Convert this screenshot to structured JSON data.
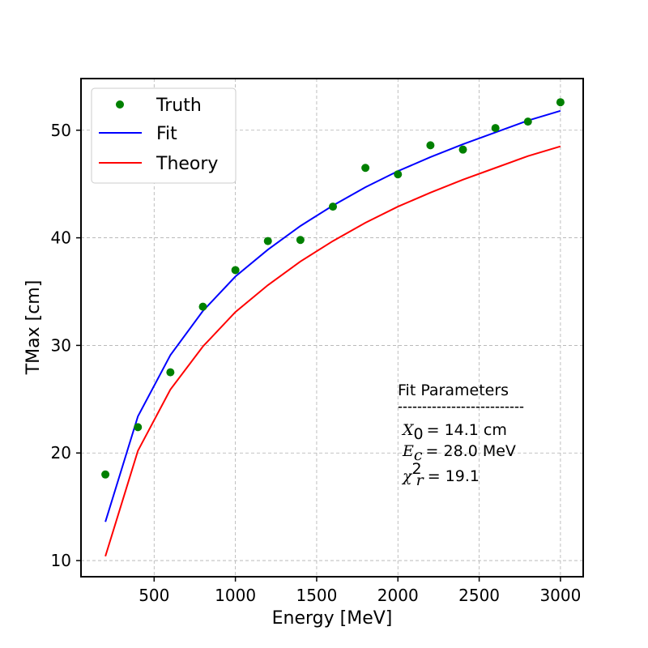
{
  "chart_data": {
    "type": "scatter",
    "xlabel": "Energy [MeV]",
    "ylabel": "TMax [cm]",
    "xlim": [
      50,
      3140
    ],
    "ylim": [
      8.5,
      54.8
    ],
    "x_ticks": [
      500,
      1000,
      1500,
      2000,
      2500,
      3000
    ],
    "y_ticks": [
      10,
      20,
      30,
      40,
      50
    ],
    "grid": true,
    "legend_position": "top-left",
    "series": [
      {
        "name": "Truth",
        "kind": "points",
        "color": "#008000",
        "x": [
          200,
          400,
          600,
          800,
          1000,
          1200,
          1400,
          1600,
          1800,
          2000,
          2200,
          2400,
          2600,
          2800,
          3000
        ],
        "y": [
          18.0,
          22.4,
          27.5,
          33.6,
          37.0,
          39.7,
          39.8,
          42.9,
          46.5,
          45.9,
          48.6,
          48.2,
          50.2,
          50.8,
          52.6
        ]
      },
      {
        "name": "Fit",
        "kind": "line",
        "color": "#0000ff",
        "x": [
          200,
          400,
          600,
          800,
          1000,
          1200,
          1400,
          1600,
          1800,
          2000,
          2200,
          2400,
          2600,
          2800,
          3000
        ],
        "y": [
          13.6,
          23.4,
          29.1,
          33.2,
          36.4,
          38.9,
          41.1,
          43.0,
          44.7,
          46.2,
          47.5,
          48.7,
          49.8,
          50.9,
          51.8
        ]
      },
      {
        "name": "Theory",
        "kind": "line",
        "color": "#ff0000",
        "x": [
          200,
          400,
          600,
          800,
          1000,
          1200,
          1400,
          1600,
          1800,
          2000,
          2200,
          2400,
          2600,
          2800,
          3000
        ],
        "y": [
          10.4,
          20.2,
          25.9,
          29.9,
          33.1,
          35.6,
          37.8,
          39.7,
          41.4,
          42.9,
          44.2,
          45.4,
          46.5,
          47.6,
          48.5
        ]
      }
    ],
    "annotation": {
      "title": "Fit Parameters",
      "separator": "--------------------------",
      "x0_label": "X",
      "x0_sub": "0",
      "x0_value": "= 14.1 cm",
      "ec_label": "E",
      "ec_sub": "c",
      "ec_value": "= 28.0 MeV",
      "chi_label": "χ",
      "chi_sup": "2",
      "chi_sub": "r",
      "chi_value": "= 19.1"
    }
  }
}
